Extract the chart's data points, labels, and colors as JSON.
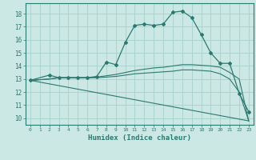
{
  "xlabel": "Humidex (Indice chaleur)",
  "xlim": [
    -0.5,
    23.5
  ],
  "ylim": [
    9.5,
    18.8
  ],
  "xticks": [
    0,
    1,
    2,
    3,
    4,
    5,
    6,
    7,
    8,
    9,
    10,
    11,
    12,
    13,
    14,
    15,
    16,
    17,
    18,
    19,
    20,
    21,
    22,
    23
  ],
  "yticks": [
    10,
    11,
    12,
    13,
    14,
    15,
    16,
    17,
    18
  ],
  "background_color": "#cce8e4",
  "grid_color": "#aad4d0",
  "line_color": "#2a7a70",
  "lines": [
    {
      "x": [
        0,
        2,
        3,
        4,
        5,
        6,
        7,
        8,
        9,
        10,
        11,
        12,
        13,
        14,
        15,
        16,
        17,
        18,
        19,
        20,
        21,
        22,
        23
      ],
      "y": [
        12.9,
        13.3,
        13.1,
        13.1,
        13.1,
        13.1,
        13.2,
        14.3,
        14.1,
        15.8,
        17.1,
        17.2,
        17.1,
        17.2,
        18.1,
        18.2,
        17.7,
        16.4,
        15.0,
        14.2,
        14.2,
        11.9,
        10.5
      ],
      "marker": true
    },
    {
      "x": [
        0,
        2,
        3,
        4,
        5,
        6,
        7,
        8,
        9,
        10,
        11,
        12,
        13,
        14,
        15,
        16,
        17,
        18,
        19,
        20,
        21,
        22,
        23
      ],
      "y": [
        12.9,
        13.0,
        13.1,
        13.1,
        13.1,
        13.1,
        13.15,
        13.25,
        13.35,
        13.5,
        13.65,
        13.75,
        13.85,
        13.9,
        14.0,
        14.1,
        14.1,
        14.05,
        14.0,
        13.9,
        13.5,
        13.0,
        9.8
      ],
      "marker": false
    },
    {
      "x": [
        0,
        2,
        3,
        4,
        5,
        6,
        7,
        8,
        9,
        10,
        11,
        12,
        13,
        14,
        15,
        16,
        17,
        18,
        19,
        20,
        21,
        22,
        23
      ],
      "y": [
        12.9,
        13.0,
        13.1,
        13.1,
        13.1,
        13.1,
        13.1,
        13.15,
        13.2,
        13.3,
        13.4,
        13.45,
        13.5,
        13.55,
        13.6,
        13.7,
        13.7,
        13.65,
        13.6,
        13.4,
        13.0,
        12.0,
        9.8
      ],
      "marker": false
    },
    {
      "x": [
        0,
        23
      ],
      "y": [
        12.9,
        9.8
      ],
      "marker": false
    }
  ]
}
